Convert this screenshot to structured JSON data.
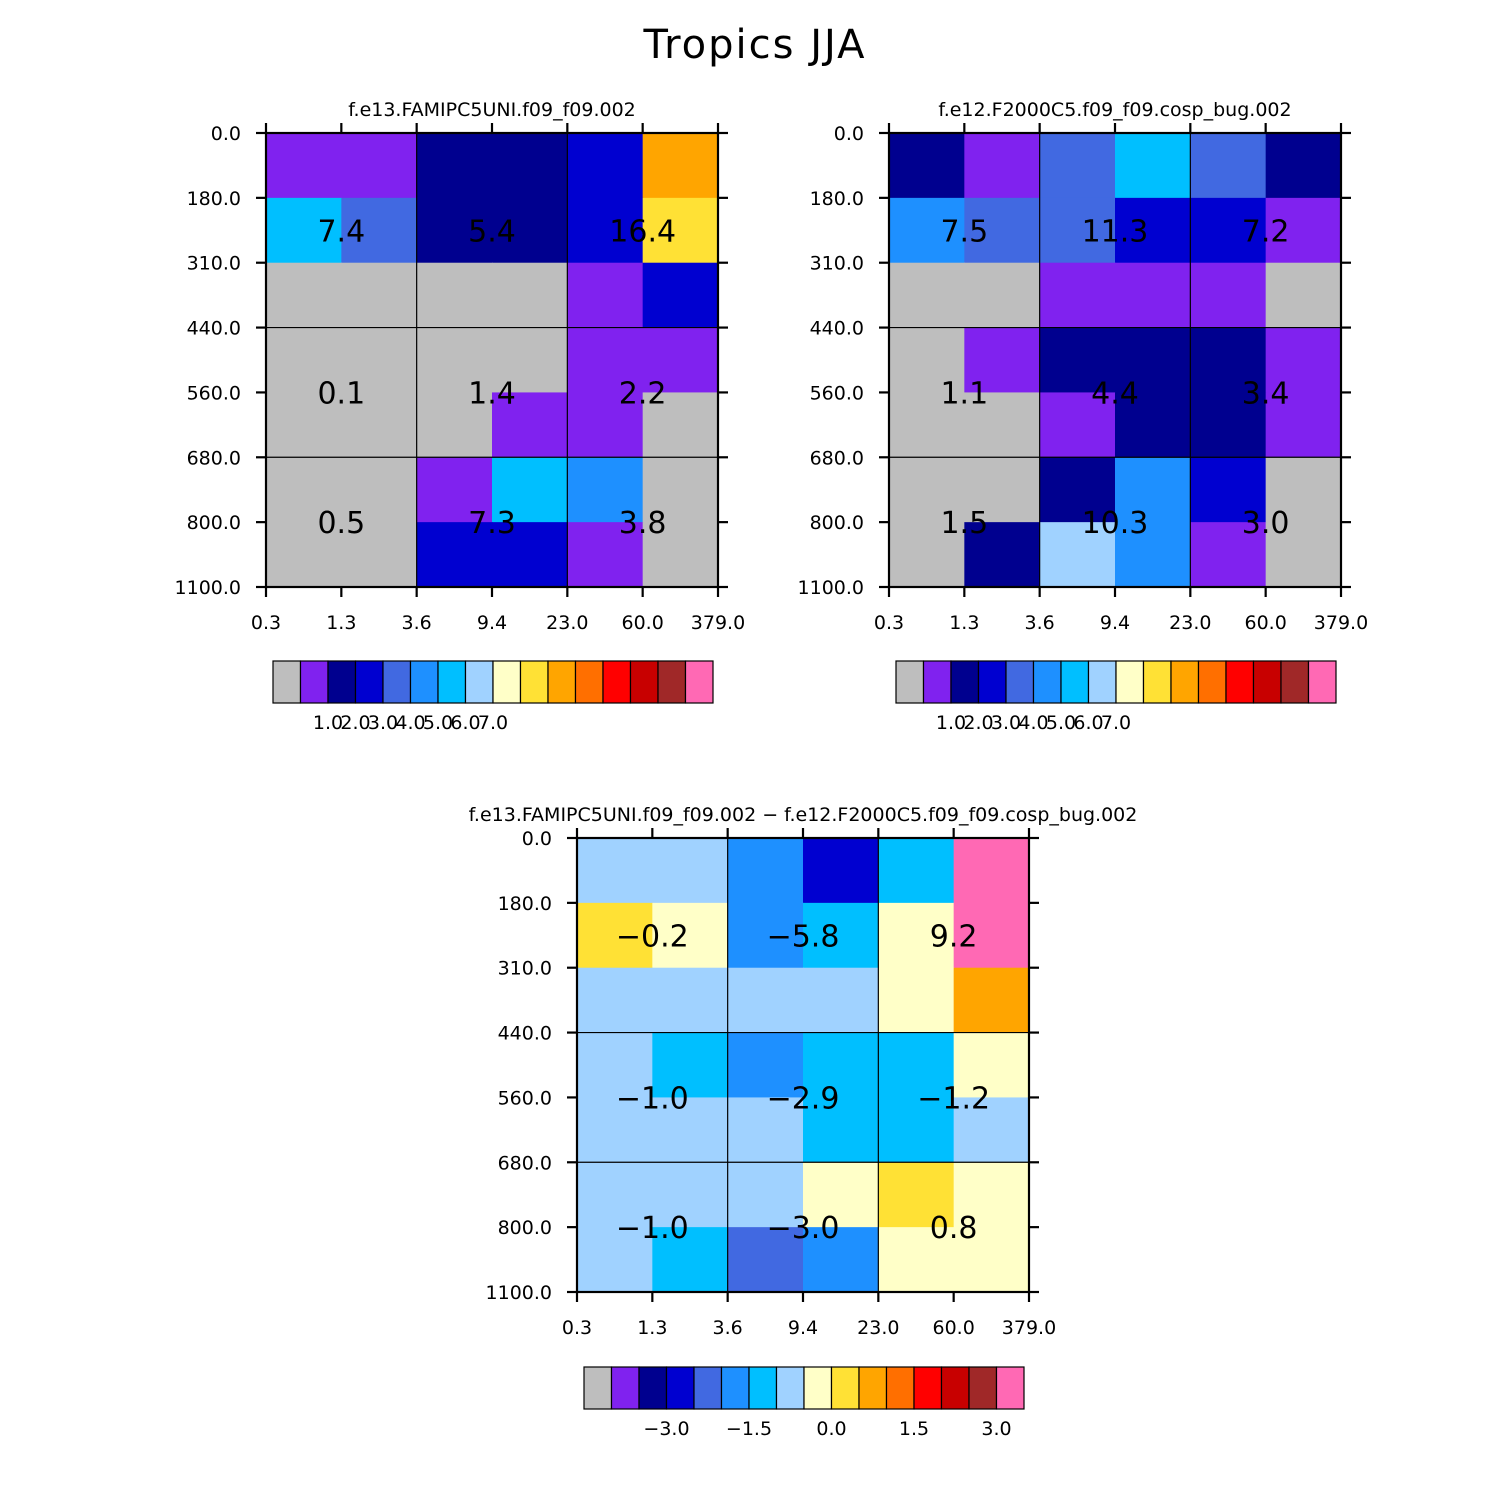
{
  "title": "Tropics JJA",
  "colors": {
    "palette": [
      "#bebebe",
      "#8022ef",
      "#00008f",
      "#0000d0",
      "#4169e1",
      "#1e90ff",
      "#00bfff",
      "#a0d2ff",
      "#ffffc8",
      "#ffe135",
      "#ffa500",
      "#ff6f00",
      "#ff0000",
      "#c80000",
      "#a02828",
      "#ff69b4"
    ],
    "grid": "#000000"
  },
  "chart_data": [
    {
      "type": "heatmap",
      "id": "panel1",
      "title": "f.e13.FAMIPC5UNI.f09_f09.002",
      "x_tick_labels": [
        "0.3",
        "1.3",
        "3.6",
        "9.4",
        "23.0",
        "60.0",
        "379.0"
      ],
      "y_tick_labels": [
        "0.0",
        "180.0",
        "310.0",
        "440.0",
        "560.0",
        "680.0",
        "800.0",
        "1100.0"
      ],
      "cell_color_index": [
        [
          1,
          1,
          2,
          2,
          3,
          10
        ],
        [
          6,
          4,
          2,
          2,
          3,
          9
        ],
        [
          0,
          0,
          0,
          0,
          1,
          3
        ],
        [
          0,
          0,
          0,
          0,
          1,
          1
        ],
        [
          0,
          0,
          0,
          1,
          1,
          0
        ],
        [
          0,
          0,
          1,
          6,
          5,
          0
        ],
        [
          0,
          0,
          3,
          3,
          1,
          0
        ]
      ],
      "box_values": [
        [
          "7.4",
          "5.4",
          "16.4"
        ],
        [
          "0.1",
          "1.4",
          "2.2"
        ],
        [
          "0.5",
          "7.3",
          "3.8"
        ]
      ],
      "colorbar_labels": [
        "1.0",
        "2.0",
        "3.0",
        "4.0",
        "5.0",
        "6.0",
        "7.0"
      ]
    },
    {
      "type": "heatmap",
      "id": "panel2",
      "title": "f.e12.F2000C5.f09_f09.cosp_bug.002",
      "x_tick_labels": [
        "0.3",
        "1.3",
        "3.6",
        "9.4",
        "23.0",
        "60.0",
        "379.0"
      ],
      "y_tick_labels": [
        "0.0",
        "180.0",
        "310.0",
        "440.0",
        "560.0",
        "680.0",
        "800.0",
        "1100.0"
      ],
      "cell_color_index": [
        [
          2,
          1,
          4,
          6,
          4,
          2
        ],
        [
          5,
          4,
          4,
          3,
          3,
          1
        ],
        [
          0,
          0,
          1,
          1,
          1,
          0
        ],
        [
          0,
          1,
          2,
          2,
          2,
          1
        ],
        [
          0,
          0,
          1,
          2,
          2,
          1
        ],
        [
          0,
          0,
          2,
          5,
          3,
          0
        ],
        [
          0,
          2,
          7,
          5,
          1,
          0
        ]
      ],
      "box_values": [
        [
          "7.5",
          "11.3",
          "7.2"
        ],
        [
          "1.1",
          "4.4",
          "3.4"
        ],
        [
          "1.5",
          "10.3",
          "3.0"
        ]
      ],
      "colorbar_labels": [
        "1.0",
        "2.0",
        "3.0",
        "4.0",
        "5.0",
        "6.0",
        "7.0"
      ]
    },
    {
      "type": "heatmap",
      "id": "panel3",
      "title": "f.e13.FAMIPC5UNI.f09_f09.002 − f.e12.F2000C5.f09_f09.cosp_bug.002",
      "x_tick_labels": [
        "0.3",
        "1.3",
        "3.6",
        "9.4",
        "23.0",
        "60.0",
        "379.0"
      ],
      "y_tick_labels": [
        "0.0",
        "180.0",
        "310.0",
        "440.0",
        "560.0",
        "680.0",
        "800.0",
        "1100.0"
      ],
      "cell_color_index": [
        [
          7,
          7,
          5,
          3,
          6,
          15
        ],
        [
          9,
          8,
          5,
          6,
          8,
          15
        ],
        [
          7,
          7,
          7,
          7,
          8,
          10
        ],
        [
          7,
          6,
          5,
          6,
          6,
          8
        ],
        [
          7,
          7,
          7,
          6,
          6,
          7
        ],
        [
          7,
          7,
          7,
          8,
          9,
          8
        ],
        [
          7,
          6,
          4,
          5,
          8,
          8
        ]
      ],
      "box_values": [
        [
          "−0.2",
          "−5.8",
          "9.2"
        ],
        [
          "−1.0",
          "−2.9",
          "−1.2"
        ],
        [
          "−1.0",
          "−3.0",
          "0.8"
        ]
      ],
      "colorbar_labels": [
        "−3.0",
        "−1.5",
        "0.0",
        "1.5",
        "3.0"
      ]
    }
  ]
}
